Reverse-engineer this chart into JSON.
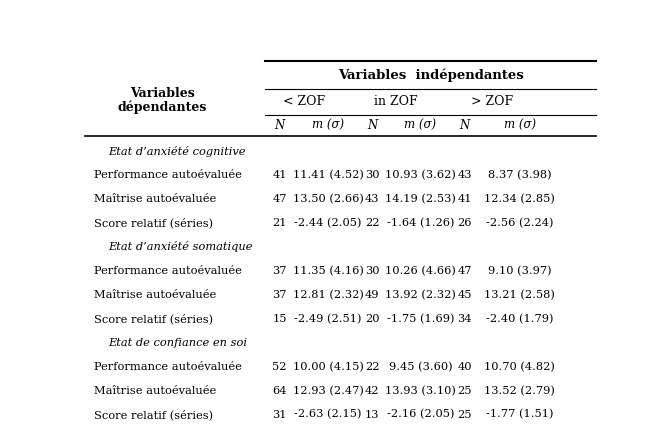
{
  "header_main": "Variables  indépendantes",
  "subheaders": [
    "< ZOF",
    "in ZOF",
    "> ZOF"
  ],
  "col_headers": [
    "N",
    "m (σ)",
    "N",
    "m (σ)",
    "N",
    "m (σ)"
  ],
  "left_header_line1": "Variables",
  "left_header_line2": "dépendantes",
  "sections": [
    {
      "section_title": "Etat d’anxiété cognitive",
      "rows": [
        {
          "label": "Performance autoévaluée",
          "data": [
            "41",
            "11.41 (4.52)",
            "30",
            "10.93 (3.62)",
            "43",
            "8.37 (3.98)"
          ]
        },
        {
          "label": "Maîtrise autoévaluée",
          "data": [
            "47",
            "13.50 (2.66)",
            "43",
            "14.19 (2.53)",
            "41",
            "12.34 (2.85)"
          ]
        },
        {
          "label": "Score relatif (séries)",
          "data": [
            "21",
            "-2.44 (2.05)",
            "22",
            "-1.64 (1.26)",
            "26",
            "-2.56 (2.24)"
          ]
        }
      ]
    },
    {
      "section_title": "Etat d’anxiété somatique",
      "rows": [
        {
          "label": "Performance autoévaluée",
          "data": [
            "37",
            "11.35 (4.16)",
            "30",
            "10.26 (4.66)",
            "47",
            "9.10 (3.97)"
          ]
        },
        {
          "label": "Maîtrise autoévaluée",
          "data": [
            "37",
            "12.81 (2.32)",
            "49",
            "13.92 (2.32)",
            "45",
            "13.21 (2.58)"
          ]
        },
        {
          "label": "Score relatif (séries)",
          "data": [
            "15",
            "-2.49 (2.51)",
            "20",
            "-1.75 (1.69)",
            "34",
            "-2.40 (1.79)"
          ]
        }
      ]
    },
    {
      "section_title": "Etat de confiance en soi",
      "rows": [
        {
          "label": "Performance autoévaluée",
          "data": [
            "52",
            "10.00 (4.15)",
            "22",
            "9.45 (3.60)",
            "40",
            "10.70 (4.82)"
          ]
        },
        {
          "label": "Maîtrise autoévaluée",
          "data": [
            "64",
            "12.93 (2.47)",
            "42",
            "13.93 (3.10)",
            "25",
            "13.52 (2.79)"
          ]
        },
        {
          "label": "Score relatif (séries)",
          "data": [
            "31",
            "-2.63 (2.15)",
            "13",
            "-2.16 (2.05)",
            "25",
            "-1.77 (1.51)"
          ]
        }
      ]
    }
  ],
  "bg_color": "#ffffff",
  "text_color": "#000000",
  "fig_width": 6.63,
  "fig_height": 4.26,
  "dpi": 100
}
